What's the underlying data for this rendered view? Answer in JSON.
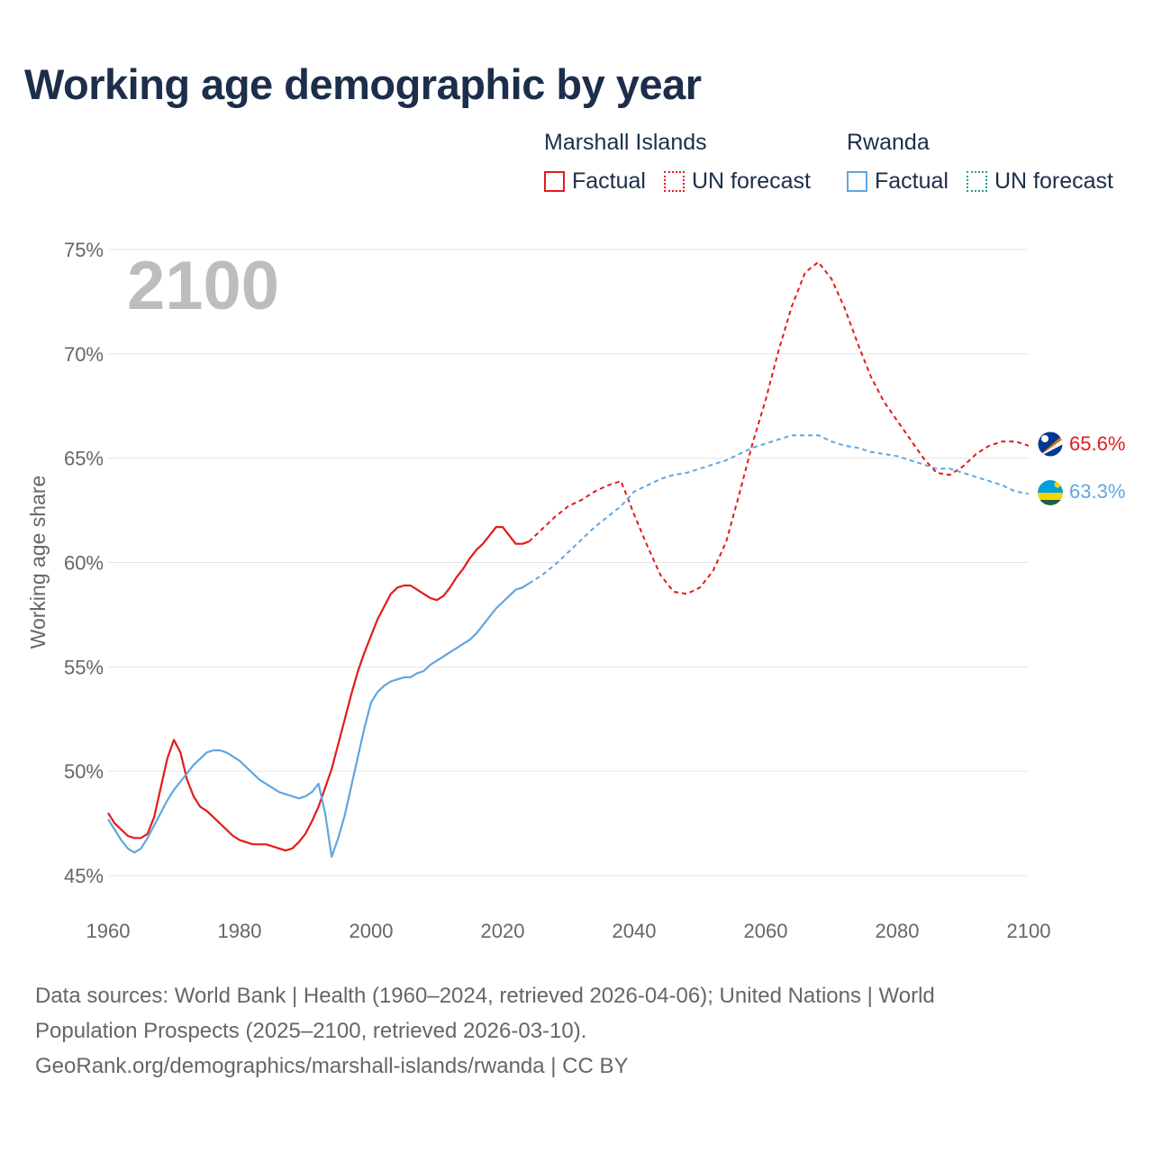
{
  "title": "Working age demographic by year",
  "legend": {
    "groups": [
      {
        "name": "Marshall Islands",
        "color": "#e31a1c",
        "factual_label": "Factual",
        "forecast_label": "UN forecast"
      },
      {
        "name": "Rwanda",
        "color": "#5fa6e3",
        "factual_label": "Factual",
        "forecast_label": "UN forecast"
      }
    ]
  },
  "footer": {
    "line1": "Data sources: World Bank | Health (1960–2024, retrieved 2026-04-06); United Nations | World",
    "line2": "Population Prospects (2025–2100, retrieved 2026-03-10).",
    "line3": "GeoRank.org/demographics/marshall-islands/rwanda | CC BY"
  },
  "chart_data": {
    "type": "line",
    "title": "Working age demographic by year",
    "ylabel": "Working age share",
    "xlabel": "",
    "xlim": [
      1960,
      2100
    ],
    "ylim": [
      45,
      75
    ],
    "x_ticks": [
      1960,
      1980,
      2000,
      2020,
      2040,
      2060,
      2080,
      2100
    ],
    "x_tick_labels": [
      "1960",
      "1980",
      "2000",
      "2020",
      "2040",
      "2060",
      "2080",
      "2100"
    ],
    "y_ticks": [
      45,
      50,
      55,
      60,
      65,
      70,
      75
    ],
    "y_tick_labels": [
      "45%",
      "50%",
      "55%",
      "60%",
      "65%",
      "70%",
      "75%"
    ],
    "year_label": "2100",
    "grid": true,
    "series": [
      {
        "name": "Marshall Islands",
        "color": "#e31a1c",
        "end_label": "65.6%",
        "factual": {
          "x": [
            1960,
            1961,
            1962,
            1963,
            1964,
            1965,
            1966,
            1967,
            1968,
            1969,
            1970,
            1971,
            1972,
            1973,
            1974,
            1975,
            1976,
            1977,
            1978,
            1979,
            1980,
            1981,
            1982,
            1983,
            1984,
            1985,
            1986,
            1987,
            1988,
            1989,
            1990,
            1991,
            1992,
            1993,
            1994,
            1995,
            1996,
            1997,
            1998,
            1999,
            2000,
            2001,
            2002,
            2003,
            2004,
            2005,
            2006,
            2007,
            2008,
            2009,
            2010,
            2011,
            2012,
            2013,
            2014,
            2015,
            2016,
            2017,
            2018,
            2019,
            2020,
            2021,
            2022,
            2023,
            2024
          ],
          "y": [
            48.0,
            47.5,
            47.2,
            46.9,
            46.8,
            46.8,
            47.0,
            47.8,
            49.2,
            50.6,
            51.5,
            50.9,
            49.6,
            48.8,
            48.3,
            48.1,
            47.8,
            47.5,
            47.2,
            46.9,
            46.7,
            46.6,
            46.5,
            46.5,
            46.5,
            46.4,
            46.3,
            46.2,
            46.3,
            46.6,
            47.0,
            47.6,
            48.3,
            49.2,
            50.1,
            51.3,
            52.5,
            53.7,
            54.8,
            55.7,
            56.5,
            57.3,
            57.9,
            58.5,
            58.8,
            58.9,
            58.9,
            58.7,
            58.5,
            58.3,
            58.2,
            58.4,
            58.8,
            59.3,
            59.7,
            60.2,
            60.6,
            60.9,
            61.3,
            61.7,
            61.7,
            61.3,
            60.9,
            60.9,
            61.0
          ]
        },
        "forecast": {
          "x": [
            2024,
            2026,
            2028,
            2030,
            2032,
            2034,
            2036,
            2038,
            2040,
            2042,
            2044,
            2046,
            2048,
            2050,
            2052,
            2054,
            2056,
            2058,
            2060,
            2062,
            2064,
            2066,
            2068,
            2070,
            2072,
            2074,
            2076,
            2078,
            2080,
            2082,
            2084,
            2086,
            2088,
            2090,
            2092,
            2094,
            2096,
            2098,
            2100
          ],
          "y": [
            61.0,
            61.6,
            62.2,
            62.7,
            63.0,
            63.4,
            63.7,
            63.9,
            62.3,
            60.8,
            59.4,
            58.6,
            58.5,
            58.8,
            59.6,
            61.0,
            63.3,
            65.7,
            67.8,
            70.2,
            72.3,
            73.9,
            74.4,
            73.6,
            72.2,
            70.5,
            68.9,
            67.7,
            66.8,
            65.9,
            65.0,
            64.3,
            64.2,
            64.6,
            65.2,
            65.6,
            65.8,
            65.8,
            65.6
          ]
        }
      },
      {
        "name": "Rwanda",
        "color": "#5fa6e3",
        "end_label": "63.3%",
        "factual": {
          "x": [
            1960,
            1961,
            1962,
            1963,
            1964,
            1965,
            1966,
            1967,
            1968,
            1969,
            1970,
            1971,
            1972,
            1973,
            1974,
            1975,
            1976,
            1977,
            1978,
            1979,
            1980,
            1981,
            1982,
            1983,
            1984,
            1985,
            1986,
            1987,
            1988,
            1989,
            1990,
            1991,
            1992,
            1993,
            1994,
            1995,
            1996,
            1997,
            1998,
            1999,
            2000,
            2001,
            2002,
            2003,
            2004,
            2005,
            2006,
            2007,
            2008,
            2009,
            2010,
            2011,
            2012,
            2013,
            2014,
            2015,
            2016,
            2017,
            2018,
            2019,
            2020,
            2021,
            2022,
            2023,
            2024
          ],
          "y": [
            47.7,
            47.2,
            46.7,
            46.3,
            46.1,
            46.3,
            46.8,
            47.4,
            48.0,
            48.6,
            49.1,
            49.5,
            49.9,
            50.3,
            50.6,
            50.9,
            51.0,
            51.0,
            50.9,
            50.7,
            50.5,
            50.2,
            49.9,
            49.6,
            49.4,
            49.2,
            49.0,
            48.9,
            48.8,
            48.7,
            48.8,
            49.0,
            49.4,
            48.0,
            45.9,
            46.8,
            47.9,
            49.3,
            50.7,
            52.1,
            53.3,
            53.8,
            54.1,
            54.3,
            54.4,
            54.5,
            54.5,
            54.7,
            54.8,
            55.1,
            55.3,
            55.5,
            55.7,
            55.9,
            56.1,
            56.3,
            56.6,
            57.0,
            57.4,
            57.8,
            58.1,
            58.4,
            58.7,
            58.8,
            59.0
          ]
        },
        "forecast": {
          "x": [
            2024,
            2026,
            2028,
            2030,
            2032,
            2034,
            2036,
            2038,
            2040,
            2042,
            2044,
            2046,
            2048,
            2050,
            2052,
            2054,
            2056,
            2058,
            2060,
            2062,
            2064,
            2066,
            2068,
            2070,
            2072,
            2074,
            2076,
            2078,
            2080,
            2082,
            2084,
            2086,
            2088,
            2090,
            2092,
            2094,
            2096,
            2098,
            2100
          ],
          "y": [
            59.0,
            59.4,
            59.9,
            60.5,
            61.1,
            61.7,
            62.2,
            62.7,
            63.4,
            63.7,
            64.0,
            64.2,
            64.3,
            64.5,
            64.7,
            64.9,
            65.2,
            65.5,
            65.7,
            65.9,
            66.1,
            66.1,
            66.1,
            65.8,
            65.6,
            65.5,
            65.3,
            65.2,
            65.1,
            64.9,
            64.7,
            64.5,
            64.5,
            64.3,
            64.1,
            63.9,
            63.7,
            63.4,
            63.3
          ]
        }
      }
    ]
  },
  "flags": {
    "marshall": {
      "name": "marshall-islands-flag",
      "colors": [
        "#003893",
        "#ffffff",
        "#dd7500"
      ]
    },
    "rwanda": {
      "name": "rwanda-flag",
      "colors": [
        "#00a1de",
        "#fad201",
        "#20603d"
      ]
    }
  }
}
